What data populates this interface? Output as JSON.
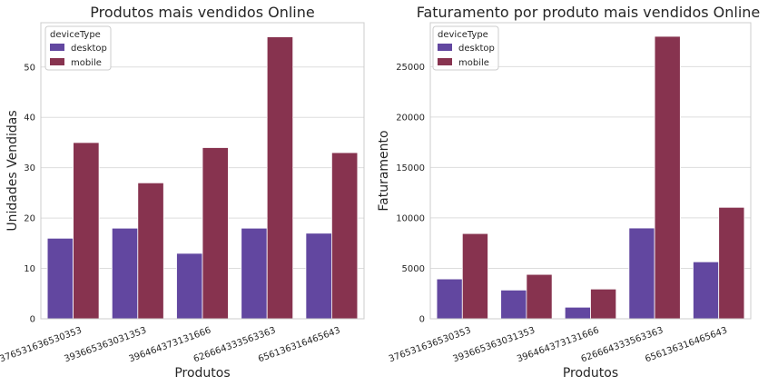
{
  "colors": {
    "desktop": "#6247a0",
    "mobile": "#87334f",
    "grid": "#dddddd",
    "frame": "#cccccc"
  },
  "chart_data": [
    {
      "type": "bar",
      "title": "Produtos mais vendidos Online",
      "xlabel": "Produtos",
      "ylabel": "Unidades Vendidas",
      "categories": [
        "376531636530353",
        "393665363031353",
        "396464373131666",
        "626664333563363",
        "656136316465643"
      ],
      "series": [
        {
          "name": "desktop",
          "values": [
            16,
            18,
            13,
            18,
            17
          ]
        },
        {
          "name": "mobile",
          "values": [
            35,
            27,
            34,
            56,
            33
          ]
        }
      ],
      "ylim": [
        0,
        58.8
      ],
      "yticks": [
        0,
        10,
        20,
        30,
        40,
        50
      ],
      "grid": true,
      "legend": {
        "title": "deviceType",
        "position": "top-left"
      }
    },
    {
      "type": "bar",
      "title": "Faturamento por produto mais vendidos Online",
      "xlabel": "Produtos",
      "ylabel": "Faturamento",
      "categories": [
        "376531636530353",
        "393665363031353",
        "396464373131666",
        "626664333563363",
        "656136316465643"
      ],
      "series": [
        {
          "name": "desktop",
          "values": [
            3950,
            2850,
            1150,
            9000,
            5650
          ]
        },
        {
          "name": "mobile",
          "values": [
            8450,
            4400,
            2950,
            28000,
            11050
          ]
        }
      ],
      "ylim": [
        0,
        29350
      ],
      "yticks": [
        0,
        5000,
        10000,
        15000,
        20000,
        25000
      ],
      "grid": true,
      "legend": {
        "title": "deviceType",
        "position": "top-left"
      }
    }
  ]
}
